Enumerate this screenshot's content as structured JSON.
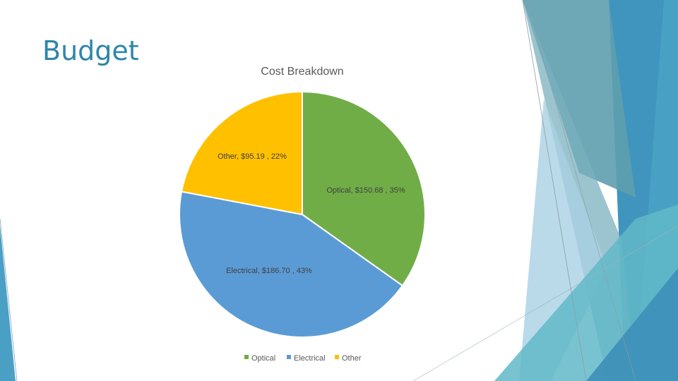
{
  "slide": {
    "title": "Budget"
  },
  "theme": {
    "accent_dark": "#3a93b8",
    "accent_mid": "#5ba8c8",
    "accent_light": "#a9d3e4",
    "accent_teal": "#6fbfcc",
    "title_color": "#2e86a8"
  },
  "chart_data": {
    "type": "pie",
    "title": "Cost Breakdown",
    "legend_position": "bottom",
    "slices": [
      {
        "name": "Optical",
        "value": 150.68,
        "label": "Optical,  $150.68 , 35%",
        "color": "#70ad47"
      },
      {
        "name": "Electrical",
        "value": 186.7,
        "label": "Electrical,  $186.70 , 43%",
        "color": "#5b9bd5"
      },
      {
        "name": "Other",
        "value": 95.19,
        "label": "Other,  $95.19 , 22%",
        "color": "#ffc000"
      }
    ]
  }
}
